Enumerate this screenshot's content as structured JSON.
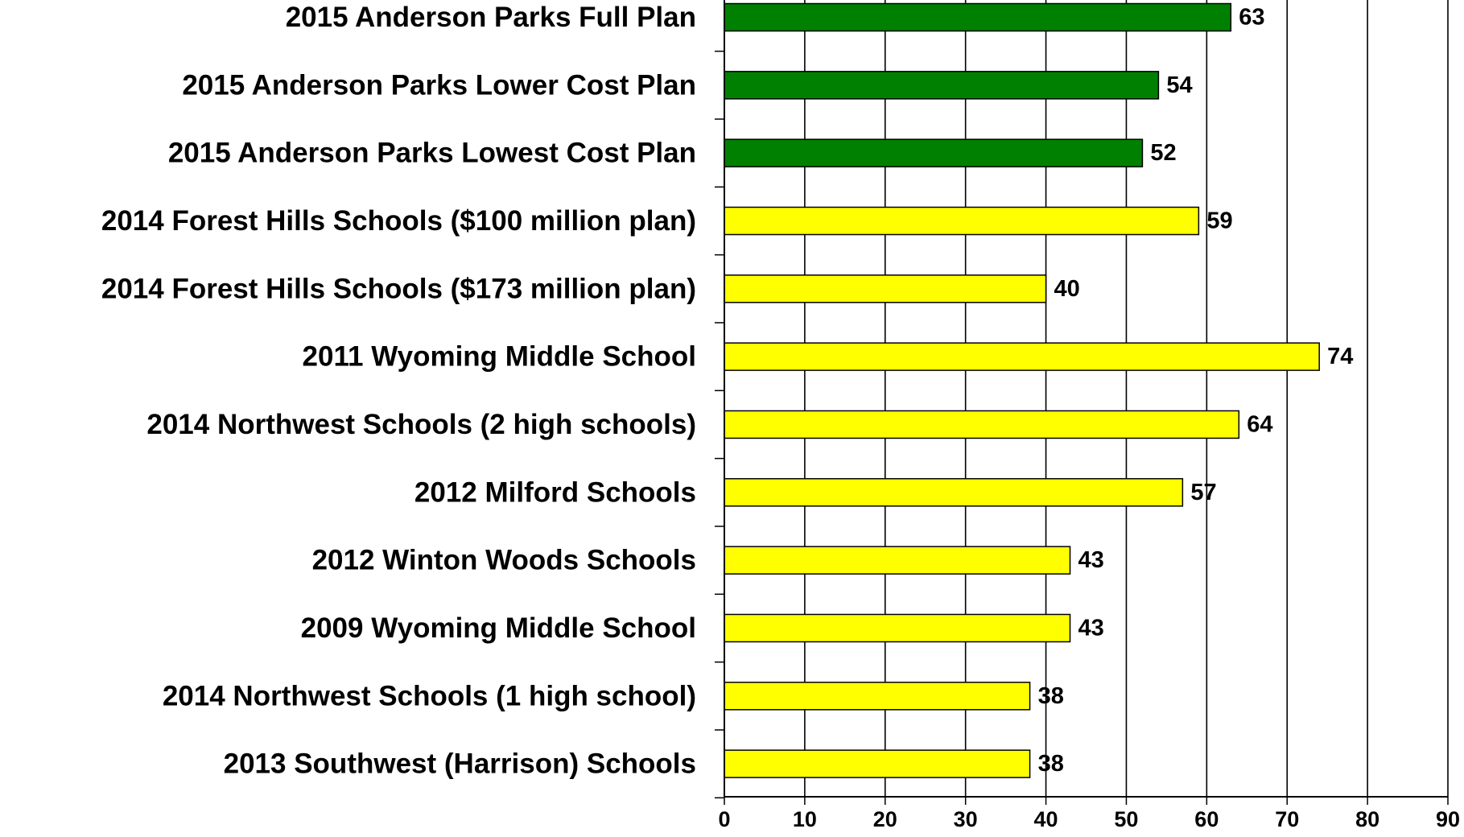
{
  "chart_data": {
    "type": "bar",
    "orientation": "horizontal",
    "categories": [
      "2015 Anderson Parks Full Plan",
      "2015 Anderson Parks Lower Cost Plan",
      "2015 Anderson Parks Lowest Cost Plan",
      "2014 Forest Hills Schools ($100 million plan)",
      "2014 Forest Hills Schools ($173 million plan)",
      "2011 Wyoming Middle School",
      "2014 Northwest Schools (2 high schools)",
      "2012 Milford Schools",
      "2012 Winton Woods Schools",
      "2009 Wyoming Middle School",
      "2014 Northwest Schools (1 high school)",
      "2013 Southwest (Harrison) Schools"
    ],
    "values": [
      63,
      54,
      52,
      59,
      40,
      74,
      64,
      57,
      43,
      43,
      38,
      38
    ],
    "bar_colors": [
      "#008000",
      "#008000",
      "#008000",
      "#ffff00",
      "#ffff00",
      "#ffff00",
      "#ffff00",
      "#ffff00",
      "#ffff00",
      "#ffff00",
      "#ffff00",
      "#ffff00"
    ],
    "data_labels": [
      "63",
      "54",
      "52",
      "59",
      "40",
      "74",
      "64",
      "57",
      "43",
      "43",
      "38",
      "38"
    ],
    "xlim": [
      0,
      90
    ],
    "xticks": [
      0,
      10,
      20,
      30,
      40,
      50,
      60,
      70,
      80,
      90
    ],
    "xtick_labels": [
      "0",
      "10",
      "20",
      "30",
      "40",
      "50",
      "60",
      "70",
      "80",
      "90"
    ],
    "grid": "vertical",
    "legend": "none",
    "title": "",
    "xlabel": "",
    "ylabel": ""
  }
}
